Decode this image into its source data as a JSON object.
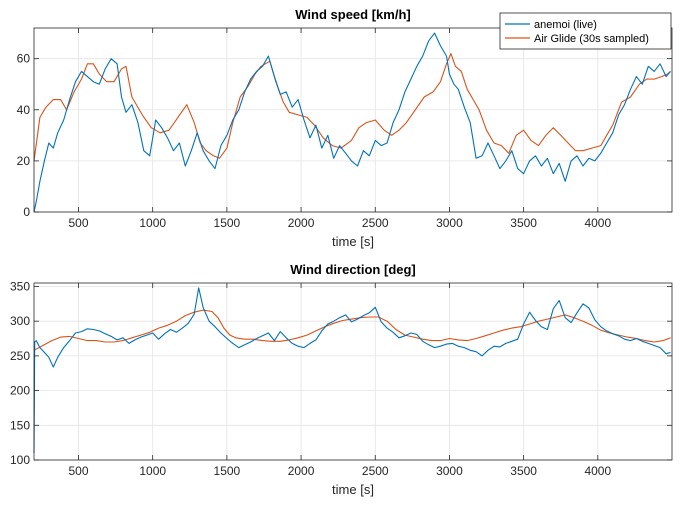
{
  "chart_data": [
    {
      "type": "line",
      "title": "Wind speed [km/h]",
      "xlabel": "time [s]",
      "ylabel": "",
      "xlim": [
        200,
        4500
      ],
      "ylim": [
        0,
        72
      ],
      "xticks": [
        500,
        1000,
        1500,
        2000,
        2500,
        3000,
        3500,
        4000
      ],
      "yticks": [
        0,
        20,
        40,
        60
      ],
      "grid": true,
      "legend": "top-right",
      "series": [
        {
          "name": "anemoi (live)",
          "color": "#0072BD",
          "x": [
            200,
            215,
            240,
            270,
            300,
            330,
            360,
            400,
            440,
            480,
            520,
            560,
            600,
            640,
            680,
            720,
            760,
            790,
            820,
            860,
            900,
            940,
            980,
            1020,
            1060,
            1100,
            1140,
            1180,
            1220,
            1260,
            1300,
            1340,
            1380,
            1420,
            1460,
            1500,
            1540,
            1580,
            1620,
            1660,
            1700,
            1740,
            1780,
            1820,
            1860,
            1900,
            1940,
            1980,
            2020,
            2060,
            2100,
            2140,
            2180,
            2220,
            2260,
            2300,
            2340,
            2380,
            2420,
            2460,
            2500,
            2540,
            2580,
            2620,
            2660,
            2700,
            2740,
            2780,
            2820,
            2860,
            2900,
            2940,
            2980,
            3000,
            3030,
            3060,
            3100,
            3140,
            3180,
            3220,
            3260,
            3300,
            3340,
            3380,
            3420,
            3460,
            3500,
            3540,
            3580,
            3620,
            3660,
            3700,
            3740,
            3780,
            3820,
            3860,
            3900,
            3940,
            3980,
            4020,
            4060,
            4100,
            4140,
            4180,
            4220,
            4260,
            4300,
            4340,
            4380,
            4420,
            4460,
            4490
          ],
          "values": [
            0,
            4,
            12,
            20,
            27,
            25,
            31,
            36,
            44,
            51,
            55,
            53,
            51,
            50,
            56,
            60,
            58,
            45,
            39,
            42,
            35,
            24,
            22,
            36,
            33,
            29,
            24,
            27,
            18,
            24,
            31,
            24,
            20,
            17,
            26,
            30,
            36,
            40,
            47,
            52,
            55,
            57,
            61,
            53,
            46,
            47,
            41,
            44,
            36,
            29,
            34,
            25,
            30,
            21,
            26,
            23,
            20,
            18,
            24,
            22,
            28,
            26,
            27,
            35,
            40,
            47,
            52,
            57,
            61,
            67,
            70,
            65,
            61,
            54,
            50,
            48,
            41,
            35,
            21,
            22,
            27,
            22,
            17,
            20,
            24,
            17,
            15,
            20,
            22,
            18,
            21,
            15,
            19,
            12,
            20,
            22,
            18,
            21,
            20,
            23,
            27,
            31,
            38,
            42,
            48,
            53,
            50,
            57,
            55,
            58,
            53,
            55
          ]
        },
        {
          "name": "Air Glide (30s sampled)",
          "color": "#D95319",
          "x": [
            200,
            240,
            280,
            330,
            380,
            420,
            470,
            520,
            560,
            600,
            640,
            690,
            740,
            790,
            820,
            860,
            930,
            990,
            1050,
            1110,
            1170,
            1230,
            1280,
            1320,
            1360,
            1410,
            1450,
            1500,
            1540,
            1590,
            1640,
            1690,
            1730,
            1790,
            1830,
            1880,
            1920,
            1980,
            2040,
            2090,
            2150,
            2210,
            2270,
            2340,
            2390,
            2440,
            2500,
            2560,
            2610,
            2660,
            2710,
            2770,
            2830,
            2890,
            2940,
            2980,
            3010,
            3040,
            3080,
            3120,
            3160,
            3200,
            3250,
            3300,
            3350,
            3400,
            3450,
            3500,
            3550,
            3600,
            3650,
            3700,
            3750,
            3800,
            3850,
            3900,
            3960,
            4020,
            4060,
            4100,
            4160,
            4220,
            4280,
            4330,
            4380,
            4430,
            4470,
            4490
          ],
          "values": [
            20,
            37,
            41,
            44,
            44,
            40,
            47,
            52,
            58,
            58,
            54,
            51,
            51,
            56,
            57,
            45,
            38,
            33,
            31,
            32,
            37,
            42,
            35,
            27,
            24,
            22,
            21,
            25,
            35,
            45,
            49,
            54,
            57,
            59,
            51,
            43,
            39,
            38,
            37,
            34,
            29,
            26,
            25,
            28,
            33,
            35,
            36,
            32,
            30,
            32,
            35,
            40,
            45,
            47,
            51,
            58,
            62,
            57,
            55,
            48,
            44,
            40,
            32,
            27,
            26,
            23,
            30,
            32,
            28,
            26,
            30,
            33,
            30,
            27,
            24,
            24,
            25,
            26,
            30,
            34,
            43,
            45,
            50,
            52,
            52,
            53,
            54,
            55
          ]
        }
      ]
    },
    {
      "type": "line",
      "title": "Wind direction [deg]",
      "xlabel": "time [s]",
      "ylabel": "",
      "xlim": [
        200,
        4500
      ],
      "ylim": [
        100,
        355
      ],
      "xticks": [
        500,
        1000,
        1500,
        2000,
        2500,
        3000,
        3500,
        4000
      ],
      "yticks": [
        100,
        150,
        200,
        250,
        300,
        350
      ],
      "grid": true,
      "legend": "none",
      "series": [
        {
          "name": "anemoi (live)",
          "color": "#0072BD",
          "x": [
            200,
            205,
            215,
            240,
            270,
            300,
            330,
            360,
            400,
            440,
            480,
            520,
            560,
            600,
            640,
            680,
            720,
            760,
            800,
            840,
            880,
            920,
            960,
            1000,
            1040,
            1080,
            1120,
            1160,
            1200,
            1240,
            1280,
            1310,
            1340,
            1380,
            1420,
            1460,
            1500,
            1540,
            1580,
            1620,
            1660,
            1700,
            1740,
            1780,
            1820,
            1860,
            1900,
            1940,
            1980,
            2020,
            2060,
            2100,
            2140,
            2180,
            2220,
            2260,
            2300,
            2340,
            2380,
            2420,
            2460,
            2500,
            2540,
            2580,
            2620,
            2660,
            2700,
            2740,
            2780,
            2820,
            2860,
            2900,
            2940,
            2980,
            3020,
            3060,
            3100,
            3140,
            3180,
            3220,
            3260,
            3300,
            3340,
            3380,
            3420,
            3460,
            3500,
            3540,
            3580,
            3620,
            3660,
            3700,
            3740,
            3780,
            3820,
            3860,
            3900,
            3940,
            3980,
            4020,
            4060,
            4100,
            4140,
            4180,
            4220,
            4260,
            4300,
            4340,
            4380,
            4420,
            4460,
            4490
          ],
          "values": [
            110,
            270,
            272,
            262,
            255,
            248,
            234,
            248,
            262,
            272,
            283,
            285,
            289,
            288,
            286,
            282,
            278,
            273,
            276,
            268,
            273,
            277,
            280,
            283,
            274,
            282,
            288,
            284,
            290,
            297,
            310,
            348,
            320,
            300,
            292,
            283,
            275,
            268,
            262,
            266,
            270,
            275,
            279,
            283,
            272,
            285,
            276,
            268,
            264,
            262,
            268,
            273,
            286,
            296,
            300,
            305,
            309,
            299,
            303,
            308,
            312,
            320,
            299,
            290,
            284,
            276,
            279,
            283,
            281,
            271,
            266,
            262,
            264,
            267,
            268,
            264,
            262,
            258,
            256,
            250,
            258,
            264,
            263,
            268,
            271,
            274,
            296,
            313,
            301,
            292,
            288,
            318,
            330,
            305,
            298,
            312,
            325,
            319,
            302,
            292,
            286,
            282,
            279,
            274,
            272,
            275,
            271,
            268,
            265,
            262,
            253,
            255
          ]
        },
        {
          "name": "Air Glide (30s sampled)",
          "color": "#D95319",
          "x": [
            200,
            260,
            320,
            380,
            440,
            500,
            560,
            620,
            680,
            740,
            800,
            860,
            920,
            980,
            1040,
            1100,
            1160,
            1220,
            1280,
            1340,
            1400,
            1440,
            1480,
            1520,
            1560,
            1620,
            1680,
            1740,
            1800,
            1860,
            1920,
            1980,
            2040,
            2100,
            2160,
            2220,
            2280,
            2340,
            2400,
            2460,
            2520,
            2580,
            2640,
            2700,
            2760,
            2820,
            2880,
            2940,
            3000,
            3060,
            3120,
            3180,
            3240,
            3300,
            3360,
            3420,
            3480,
            3540,
            3600,
            3660,
            3720,
            3780,
            3840,
            3900,
            3960,
            4020,
            4080,
            4140,
            4200,
            4260,
            4320,
            4380,
            4440,
            4490
          ],
          "values": [
            258,
            265,
            272,
            277,
            278,
            275,
            272,
            272,
            270,
            270,
            272,
            276,
            280,
            284,
            290,
            294,
            300,
            308,
            313,
            316,
            314,
            305,
            290,
            280,
            276,
            274,
            274,
            272,
            271,
            271,
            273,
            276,
            280,
            286,
            292,
            297,
            301,
            303,
            305,
            306,
            306,
            300,
            288,
            280,
            277,
            274,
            272,
            272,
            275,
            273,
            272,
            275,
            279,
            283,
            287,
            290,
            292,
            296,
            300,
            303,
            306,
            309,
            305,
            300,
            294,
            287,
            283,
            280,
            277,
            275,
            272,
            270,
            272,
            276
          ]
        }
      ]
    }
  ]
}
